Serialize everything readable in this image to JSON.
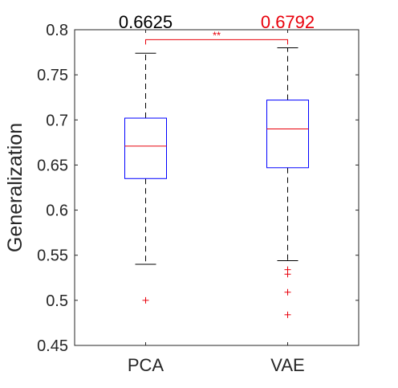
{
  "chart_data": {
    "type": "box",
    "xlabel": "",
    "ylabel": "Generalization",
    "ylim": [
      0.45,
      0.8
    ],
    "yticks": [
      0.45,
      0.5,
      0.55,
      0.6,
      0.65,
      0.7,
      0.75,
      0.8
    ],
    "ytick_labels": [
      "0.45",
      "0.5",
      "0.55",
      "0.6",
      "0.65",
      "0.7",
      "0.75",
      "0.8"
    ],
    "grid": false,
    "categories": [
      "PCA",
      "VAE"
    ],
    "boxes": [
      {
        "name": "PCA",
        "whisker_low": 0.54,
        "q1": 0.635,
        "median": 0.671,
        "q3": 0.702,
        "whisker_high": 0.774,
        "outliers": [
          0.5
        ]
      },
      {
        "name": "VAE",
        "whisker_low": 0.544,
        "q1": 0.647,
        "median": 0.69,
        "q3": 0.722,
        "whisker_high": 0.78,
        "outliers": [
          0.534,
          0.529,
          0.509,
          0.484
        ]
      }
    ],
    "top_labels": [
      {
        "text": "0.6625",
        "color": "#000000"
      },
      {
        "text": "0.6792",
        "color": "#e8000b"
      }
    ],
    "significance": {
      "text": "**",
      "from": "PCA",
      "to": "VAE",
      "y": 0.789,
      "color": "#e8000b"
    },
    "colors": {
      "box": "#0000ff",
      "median": "#e8000b",
      "whisker": "#000000",
      "outlier": "#e8000b",
      "axis": "#262626"
    }
  }
}
